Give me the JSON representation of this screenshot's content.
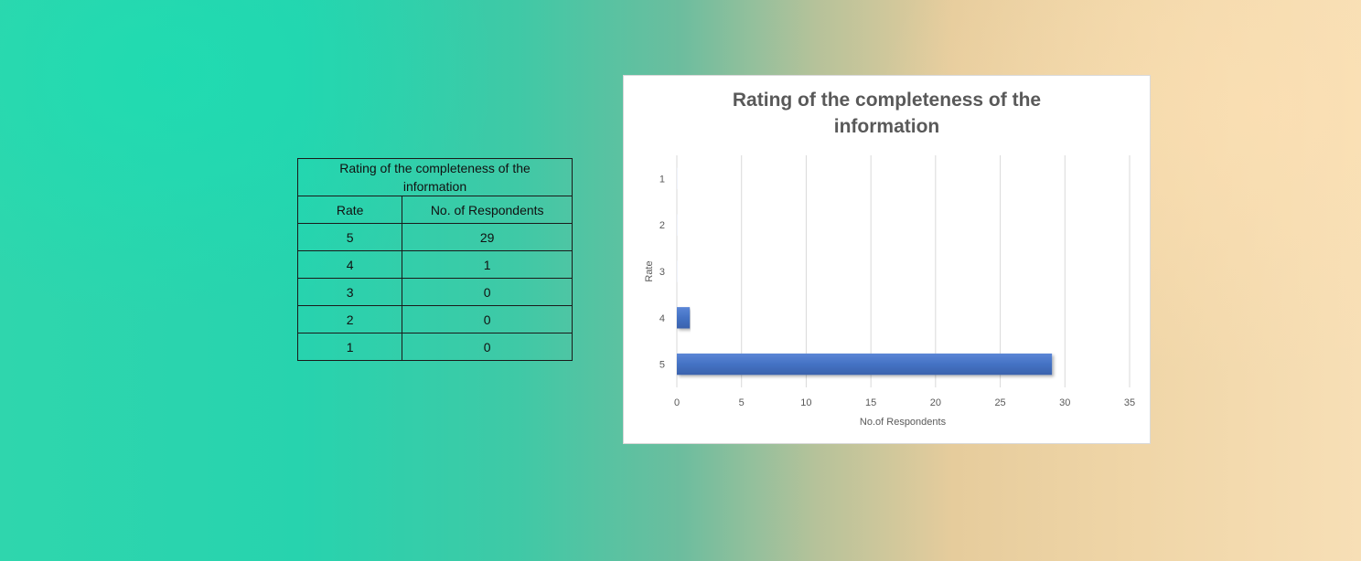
{
  "table": {
    "title": "Rating of the completeness of the information",
    "headers": [
      "Rate",
      "No. of Respondents"
    ],
    "rows": [
      [
        "5",
        "29"
      ],
      [
        "4",
        "1"
      ],
      [
        "3",
        "0"
      ],
      [
        "2",
        "0"
      ],
      [
        "1",
        "0"
      ]
    ]
  },
  "chart_data": {
    "type": "bar",
    "orientation": "horizontal",
    "title": "Rating of the completeness of the information",
    "xlabel": "No.of Respondents",
    "ylabel": "Rate",
    "categories": [
      "1",
      "2",
      "3",
      "4",
      "5"
    ],
    "values": [
      0,
      0,
      0,
      1,
      29
    ],
    "xlim": [
      0,
      35
    ],
    "xticks": [
      "0",
      "5",
      "10",
      "15",
      "20",
      "25",
      "30",
      "35"
    ],
    "grid": true,
    "legend": "none",
    "bar_color": "#4472c4"
  }
}
